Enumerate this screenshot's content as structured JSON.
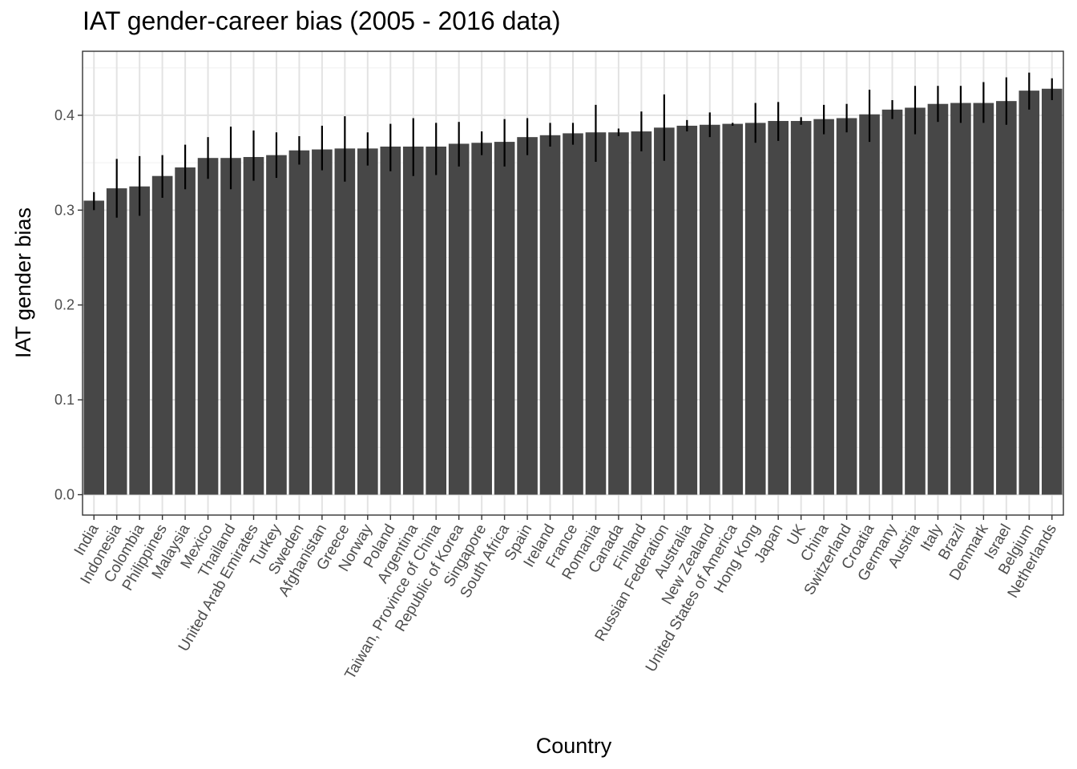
{
  "chart_data": {
    "type": "bar",
    "title": "IAT gender-career bias (2005 - 2016 data)",
    "xlabel": "Country",
    "ylabel": "IAT gender bias",
    "ylim": [
      -0.0215,
      0.4675
    ],
    "yticks": [
      0.0,
      0.1,
      0.2,
      0.3,
      0.4
    ],
    "ytick_labels": [
      "0.0",
      "0.1",
      "0.2",
      "0.3",
      "0.4"
    ],
    "grid": true,
    "bar_color": "#474747",
    "errorbar_color": "#000000",
    "categories": [
      "India",
      "Indonesia",
      "Colombia",
      "Philippines",
      "Malaysia",
      "Mexico",
      "Thailand",
      "United Arab Emirates",
      "Turkey",
      "Sweden",
      "Afghanistan",
      "Greece",
      "Norway",
      "Poland",
      "Argentina",
      "Taiwan, Province of China",
      "Republic of Korea",
      "Singapore",
      "South Africa",
      "Spain",
      "Ireland",
      "France",
      "Romania",
      "Canada",
      "Finland",
      "Russian Federation",
      "Australia",
      "New Zealand",
      "United States of America",
      "Hong Kong",
      "Japan",
      "UK",
      "China",
      "Switzerland",
      "Croatia",
      "Germany",
      "Austria",
      "Italy",
      "Brazil",
      "Denmark",
      "Israel",
      "Belgium",
      "Netherlands"
    ],
    "values": [
      0.31,
      0.323,
      0.325,
      0.336,
      0.345,
      0.355,
      0.355,
      0.356,
      0.358,
      0.363,
      0.364,
      0.365,
      0.365,
      0.367,
      0.367,
      0.367,
      0.37,
      0.371,
      0.372,
      0.377,
      0.379,
      0.381,
      0.382,
      0.382,
      0.383,
      0.387,
      0.389,
      0.39,
      0.391,
      0.392,
      0.394,
      0.394,
      0.396,
      0.397,
      0.401,
      0.406,
      0.408,
      0.412,
      0.413,
      0.413,
      0.415,
      0.426,
      0.428
    ],
    "error_low": [
      0.3,
      0.292,
      0.294,
      0.313,
      0.322,
      0.333,
      0.322,
      0.331,
      0.334,
      0.348,
      0.342,
      0.33,
      0.347,
      0.341,
      0.336,
      0.337,
      0.346,
      0.358,
      0.346,
      0.358,
      0.367,
      0.369,
      0.351,
      0.378,
      0.362,
      0.352,
      0.383,
      0.377,
      0.389,
      0.371,
      0.373,
      0.39,
      0.38,
      0.382,
      0.372,
      0.396,
      0.38,
      0.393,
      0.392,
      0.392,
      0.39,
      0.406,
      0.416
    ],
    "error_high": [
      0.319,
      0.354,
      0.357,
      0.358,
      0.369,
      0.377,
      0.388,
      0.384,
      0.382,
      0.378,
      0.389,
      0.399,
      0.382,
      0.391,
      0.397,
      0.392,
      0.393,
      0.383,
      0.396,
      0.397,
      0.392,
      0.392,
      0.411,
      0.386,
      0.404,
      0.422,
      0.395,
      0.403,
      0.392,
      0.413,
      0.414,
      0.398,
      0.411,
      0.412,
      0.427,
      0.416,
      0.431,
      0.431,
      0.431,
      0.435,
      0.44,
      0.445,
      0.439
    ]
  }
}
